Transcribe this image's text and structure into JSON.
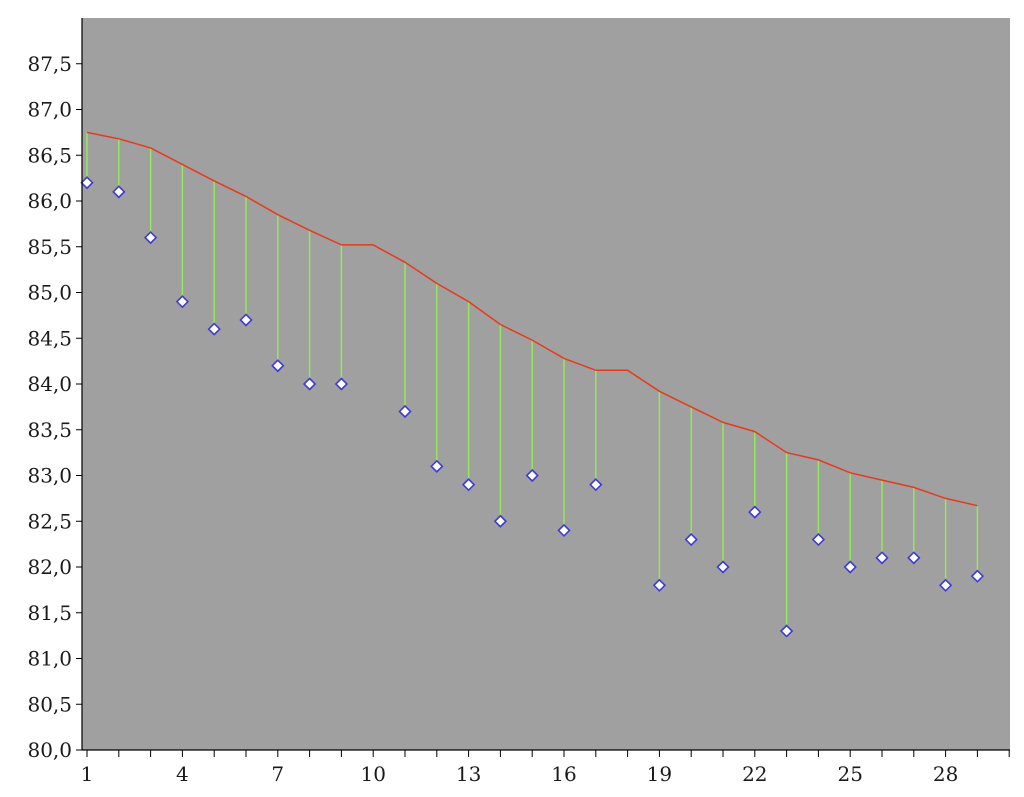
{
  "chart_data": {
    "type": "line",
    "title": "",
    "xlabel": "",
    "ylabel": "",
    "xlim": [
      1,
      30
    ],
    "ylim": [
      80.0,
      88.0
    ],
    "y_ticks": [
      "80,0",
      "80,5",
      "81,0",
      "81,5",
      "82,0",
      "82,5",
      "83,0",
      "83,5",
      "84,0",
      "84,5",
      "85,0",
      "85,5",
      "86,0",
      "86,5",
      "87,0",
      "87,5"
    ],
    "x_tick_labels": [
      "1",
      "4",
      "7",
      "10",
      "13",
      "16",
      "19",
      "22",
      "25",
      "28"
    ],
    "x_tick_values": [
      1,
      4,
      7,
      10,
      13,
      16,
      19,
      22,
      25,
      28
    ],
    "grid": false,
    "legend": "none",
    "colors": {
      "plot_background": "#a0a0a0",
      "trend_line": "#e8391c",
      "drop_lines": "#96e85a",
      "marker_fill": "#ffffff",
      "marker_stroke": "#3b3bd6"
    },
    "series": [
      {
        "kind": "line",
        "x": [
          1,
          2,
          3,
          4,
          5,
          6,
          7,
          8,
          9,
          10,
          11,
          12,
          13,
          14,
          15,
          16,
          17,
          18,
          19,
          20,
          21,
          22,
          23,
          24,
          25,
          26,
          27,
          28,
          29
        ],
        "values": [
          86.75,
          86.68,
          86.58,
          86.4,
          86.22,
          86.05,
          85.85,
          85.68,
          85.52,
          85.52,
          85.33,
          85.1,
          84.9,
          84.65,
          84.48,
          84.28,
          84.15,
          84.15,
          83.92,
          83.75,
          83.58,
          83.48,
          83.25,
          83.17,
          83.03,
          82.95,
          82.87,
          82.75,
          82.67
        ]
      },
      {
        "kind": "scatter",
        "marker": "diamond",
        "x": [
          1,
          2,
          3,
          4,
          5,
          6,
          7,
          8,
          9,
          11,
          12,
          13,
          14,
          15,
          16,
          17,
          19,
          20,
          21,
          22,
          23,
          24,
          25,
          26,
          27,
          28,
          29
        ],
        "values": [
          86.2,
          86.1,
          85.6,
          84.9,
          84.6,
          84.7,
          84.2,
          84.0,
          84.0,
          83.7,
          83.1,
          82.9,
          82.5,
          83.0,
          82.4,
          82.9,
          81.8,
          82.3,
          82.0,
          82.6,
          81.3,
          82.3,
          82.0,
          82.1,
          82.1,
          81.8,
          81.9
        ]
      }
    ]
  }
}
